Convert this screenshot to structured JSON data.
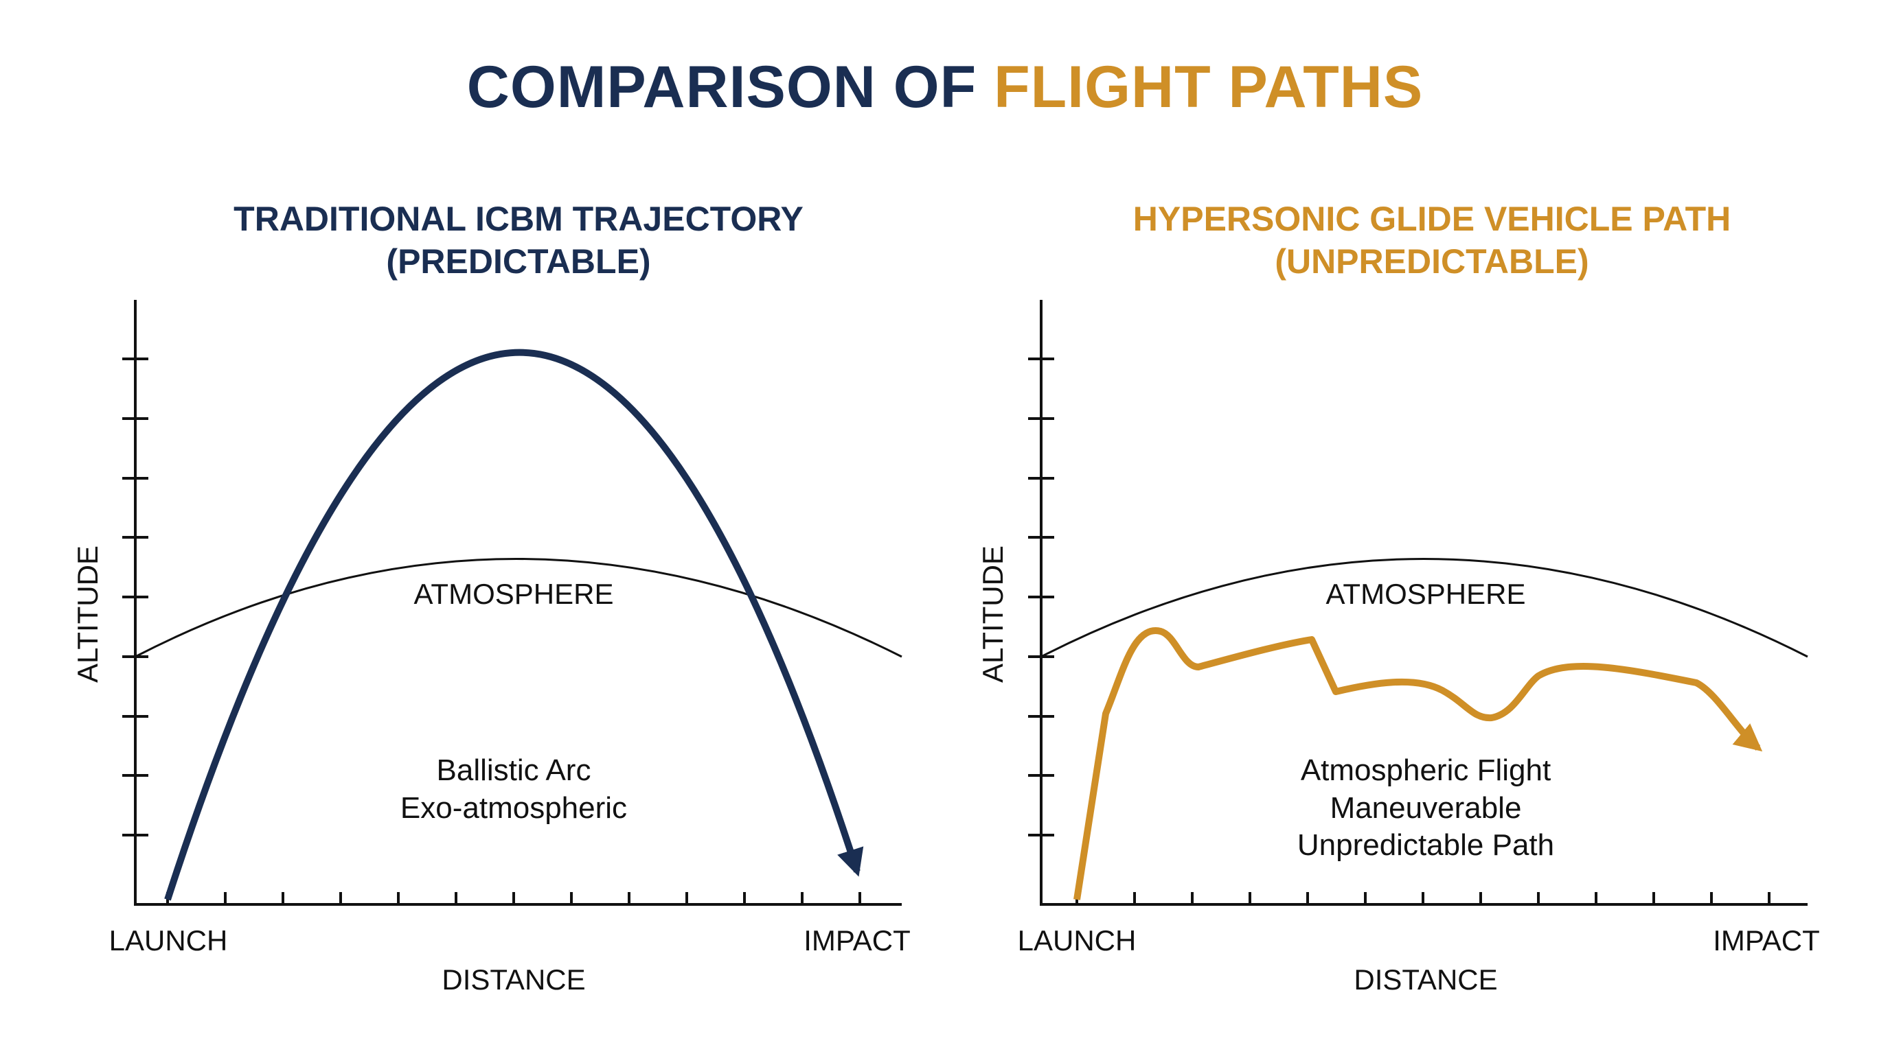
{
  "title": {
    "part1": "COMPARISON OF ",
    "part2": "FLIGHT PATHS"
  },
  "colors": {
    "navy": "#1a2e52",
    "gold": "#cf8f27",
    "axis": "#111111"
  },
  "left_panel": {
    "title_line1": "TRADITIONAL ICBM TRAJECTORY",
    "title_line2": "(PREDICTABLE)",
    "y_axis_label": "ALTITUDE",
    "x_axis_label": "DISTANCE",
    "x_start_label": "LAUNCH",
    "x_end_label": "IMPACT",
    "atmosphere_label": "ATMOSPHERE",
    "note_line1": "Ballistic Arc",
    "note_line2": "Exo-atmospheric"
  },
  "right_panel": {
    "title_line1": "HYPERSONIC GLIDE VEHICLE PATH",
    "title_line2": "(UNPREDICTABLE)",
    "y_axis_label": "ALTITUDE",
    "x_axis_label": "DISTANCE",
    "x_start_label": "LAUNCH",
    "x_end_label": "IMPACT",
    "atmosphere_label": "ATMOSPHERE",
    "note_line1": "Atmospheric Flight",
    "note_line2": "Maneuverable",
    "note_line3": "Unpredictable Path"
  }
}
